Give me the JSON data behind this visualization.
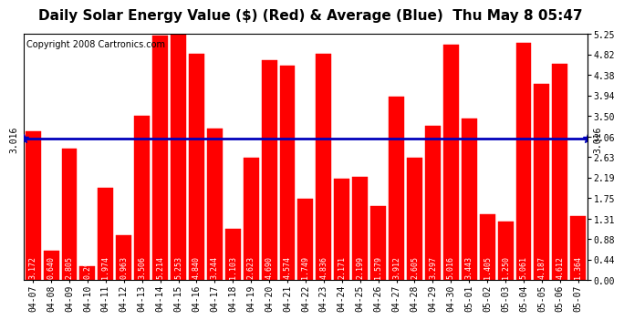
{
  "title": "Daily Solar Energy Value ($) (Red) & Average (Blue)  Thu May 8 05:47",
  "copyright": "Copyright 2008 Cartronics.com",
  "categories": [
    "04-07",
    "04-08",
    "04-09",
    "04-10",
    "04-11",
    "04-12",
    "04-13",
    "04-14",
    "04-15",
    "04-16",
    "04-17",
    "04-18",
    "04-19",
    "04-20",
    "04-21",
    "04-22",
    "04-23",
    "04-24",
    "04-25",
    "04-26",
    "04-27",
    "04-28",
    "04-29",
    "04-30",
    "05-01",
    "05-02",
    "05-03",
    "05-04",
    "05-05",
    "05-06",
    "05-07"
  ],
  "values": [
    3.172,
    0.64,
    2.805,
    0.294,
    1.974,
    0.963,
    3.506,
    5.214,
    5.253,
    4.84,
    3.244,
    1.103,
    2.623,
    4.69,
    4.574,
    1.749,
    4.836,
    2.171,
    2.199,
    1.579,
    3.912,
    2.605,
    3.297,
    5.016,
    3.443,
    1.405,
    1.25,
    5.061,
    4.187,
    4.612,
    1.364
  ],
  "average": 3.016,
  "bar_color": "#ff0000",
  "average_color": "#0000bb",
  "background_color": "#ffffff",
  "plot_background": "#ffffff",
  "grid_color": "#aaaaaa",
  "ylim_max": 5.25,
  "yticks": [
    0.0,
    0.44,
    0.88,
    1.31,
    1.75,
    2.19,
    2.63,
    3.06,
    3.5,
    3.94,
    4.38,
    4.82,
    5.25
  ],
  "title_fontsize": 11,
  "copyright_fontsize": 7,
  "tick_fontsize": 7,
  "value_fontsize": 6
}
